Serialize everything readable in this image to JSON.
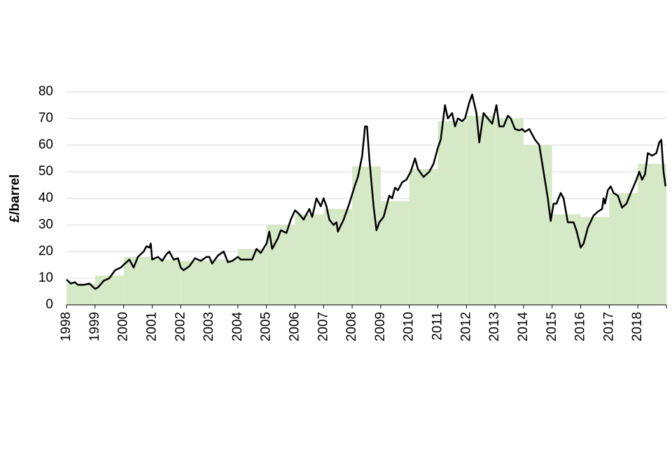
{
  "chart_data": {
    "type": "line",
    "y_label": "£/barrel",
    "xlim": [
      1998,
      2019
    ],
    "xticks": [
      1998,
      1999,
      2000,
      2001,
      2002,
      2003,
      2004,
      2005,
      2006,
      2007,
      2008,
      2009,
      2010,
      2011,
      2012,
      2013,
      2014,
      2015,
      2016,
      2017,
      2018
    ],
    "ylim": [
      0,
      80
    ],
    "yticks": [
      0,
      10,
      20,
      30,
      40,
      50,
      60,
      70,
      80
    ],
    "grid": true,
    "series": [
      {
        "type": "step",
        "color": "#d6e9c6",
        "x": [
          1998,
          1999,
          2000,
          2001,
          2002,
          2003,
          2004,
          2005,
          2006,
          2007,
          2008,
          2009,
          2010,
          2011,
          2012,
          2013,
          2014,
          2015,
          2016,
          2017,
          2018
        ],
        "values": [
          8,
          11,
          18,
          17,
          16.5,
          17,
          21,
          30,
          34,
          36,
          52,
          39,
          51,
          69,
          71,
          70,
          60,
          34,
          33,
          42,
          53
        ]
      },
      {
        "type": "line",
        "color": "#000000",
        "x": [
          1998.0,
          1998.15,
          1998.3,
          1998.4,
          1998.6,
          1998.8,
          1999.0,
          1999.1,
          1999.3,
          1999.5,
          1999.7,
          1999.9,
          2000.0,
          2000.2,
          2000.35,
          2000.5,
          2000.7,
          2000.8,
          2000.9,
          2000.95,
          2001.0,
          2001.2,
          2001.35,
          2001.5,
          2001.6,
          2001.75,
          2001.9,
          2002.0,
          2002.1,
          2002.3,
          2002.5,
          2002.7,
          2002.9,
          2003.0,
          2003.1,
          2003.3,
          2003.5,
          2003.65,
          2003.8,
          2004.0,
          2004.1,
          2004.3,
          2004.5,
          2004.65,
          2004.8,
          2005.0,
          2005.1,
          2005.2,
          2005.4,
          2005.5,
          2005.7,
          2005.85,
          2006.0,
          2006.15,
          2006.3,
          2006.5,
          2006.6,
          2006.75,
          2006.9,
          2007.0,
          2007.1,
          2007.2,
          2007.35,
          2007.45,
          2007.5,
          2007.7,
          2007.9,
          2008.1,
          2008.2,
          2008.35,
          2008.45,
          2008.52,
          2008.6,
          2008.75,
          2008.85,
          2008.95,
          2009.1,
          2009.3,
          2009.4,
          2009.5,
          2009.6,
          2009.75,
          2009.9,
          2010.05,
          2010.2,
          2010.3,
          2010.5,
          2010.7,
          2010.85,
          2011.0,
          2011.1,
          2011.25,
          2011.35,
          2011.5,
          2011.6,
          2011.7,
          2011.85,
          2011.95,
          2012.1,
          2012.2,
          2012.35,
          2012.45,
          2012.6,
          2012.75,
          2012.9,
          2013.05,
          2013.15,
          2013.3,
          2013.45,
          2013.55,
          2013.7,
          2013.85,
          2013.95,
          2014.05,
          2014.2,
          2014.4,
          2014.55,
          2014.7,
          2014.85,
          2014.95,
          2015.05,
          2015.15,
          2015.3,
          2015.4,
          2015.55,
          2015.75,
          2015.85,
          2016.0,
          2016.1,
          2016.25,
          2016.45,
          2016.6,
          2016.75,
          2016.8,
          2016.85,
          2016.95,
          2017.05,
          2017.15,
          2017.3,
          2017.45,
          2017.6,
          2017.75,
          2017.95,
          2018.05,
          2018.15,
          2018.25,
          2018.35,
          2018.5,
          2018.65,
          2018.75,
          2018.82,
          2018.9,
          2018.97
        ],
        "values": [
          9.5,
          8,
          8.5,
          7.5,
          7.5,
          8,
          6,
          6.5,
          9,
          10,
          13,
          14,
          15,
          17,
          14,
          18,
          20,
          22,
          21.5,
          23,
          17,
          18,
          16.5,
          19,
          20,
          17,
          17.5,
          14,
          13,
          14.5,
          17.5,
          16.5,
          18,
          18,
          15.5,
          18.5,
          20,
          16,
          16.5,
          18,
          17,
          17,
          17,
          21,
          19.5,
          23,
          27.5,
          21,
          25,
          28,
          27,
          32,
          35.5,
          34,
          32,
          36,
          33,
          40,
          37,
          40,
          37,
          32,
          30,
          31,
          27.5,
          32,
          38,
          45,
          48,
          56,
          67,
          67,
          55,
          37,
          28,
          31,
          33,
          41,
          40,
          44,
          43,
          46,
          47,
          50,
          55,
          51,
          48,
          50,
          53,
          59,
          62,
          75,
          70,
          72,
          67,
          70,
          69,
          70,
          76,
          79,
          72,
          61,
          72,
          70,
          68,
          75,
          67,
          67,
          71,
          70,
          66,
          65.5,
          66,
          65,
          66,
          62,
          60,
          50,
          40,
          31.5,
          38,
          38,
          42,
          40,
          31,
          31,
          28,
          21.5,
          23,
          29,
          33.5,
          35,
          36,
          40,
          38,
          43,
          44.5,
          42,
          41,
          36.5,
          38,
          42,
          47,
          50,
          47,
          49,
          57,
          56,
          57,
          61,
          62,
          50,
          44.5
        ]
      }
    ]
  }
}
